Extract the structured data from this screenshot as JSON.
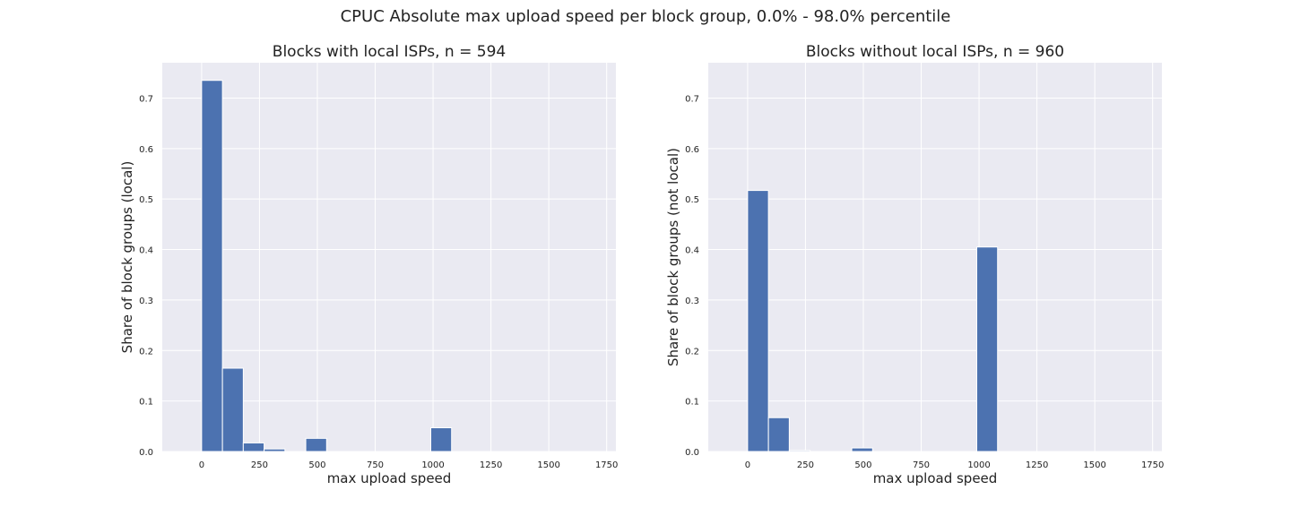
{
  "suptitle": "CPUC Absolute max upload speed per block group, 0.0% - 98.0% percentile",
  "colors": {
    "bar": "#4c72b0",
    "plot_bg": "#eaeaf2",
    "grid": "#ffffff"
  },
  "chart_data": [
    {
      "type": "bar",
      "title": "Blocks with local ISPs, n = 594",
      "xlabel": "max upload speed",
      "ylabel": "Share of block groups (local)",
      "xlim": [
        -170,
        1790
      ],
      "ylim": [
        0,
        0.77
      ],
      "xticks": [
        0,
        250,
        500,
        750,
        1000,
        1250,
        1500,
        1750
      ],
      "yticks": [
        0.0,
        0.1,
        0.2,
        0.3,
        0.4,
        0.5,
        0.6,
        0.7
      ],
      "grid": true,
      "bins": [
        {
          "x0": 0,
          "x1": 90,
          "value": 0.735
        },
        {
          "x0": 90,
          "x1": 180,
          "value": 0.165
        },
        {
          "x0": 180,
          "x1": 270,
          "value": 0.017
        },
        {
          "x0": 270,
          "x1": 360,
          "value": 0.005
        },
        {
          "x0": 450,
          "x1": 540,
          "value": 0.026
        },
        {
          "x0": 990,
          "x1": 1080,
          "value": 0.047
        }
      ]
    },
    {
      "type": "bar",
      "title": "Blocks without local ISPs, n = 960",
      "xlabel": "max upload speed",
      "ylabel": "Share of block groups (not local)",
      "xlim": [
        -170,
        1790
      ],
      "ylim": [
        0,
        0.77
      ],
      "xticks": [
        0,
        250,
        500,
        750,
        1000,
        1250,
        1500,
        1750
      ],
      "yticks": [
        0.0,
        0.1,
        0.2,
        0.3,
        0.4,
        0.5,
        0.6,
        0.7
      ],
      "grid": true,
      "bins": [
        {
          "x0": 0,
          "x1": 90,
          "value": 0.517
        },
        {
          "x0": 90,
          "x1": 180,
          "value": 0.067
        },
        {
          "x0": 180,
          "x1": 270,
          "value": 0.002
        },
        {
          "x0": 450,
          "x1": 540,
          "value": 0.007
        },
        {
          "x0": 990,
          "x1": 1080,
          "value": 0.405
        }
      ]
    }
  ]
}
